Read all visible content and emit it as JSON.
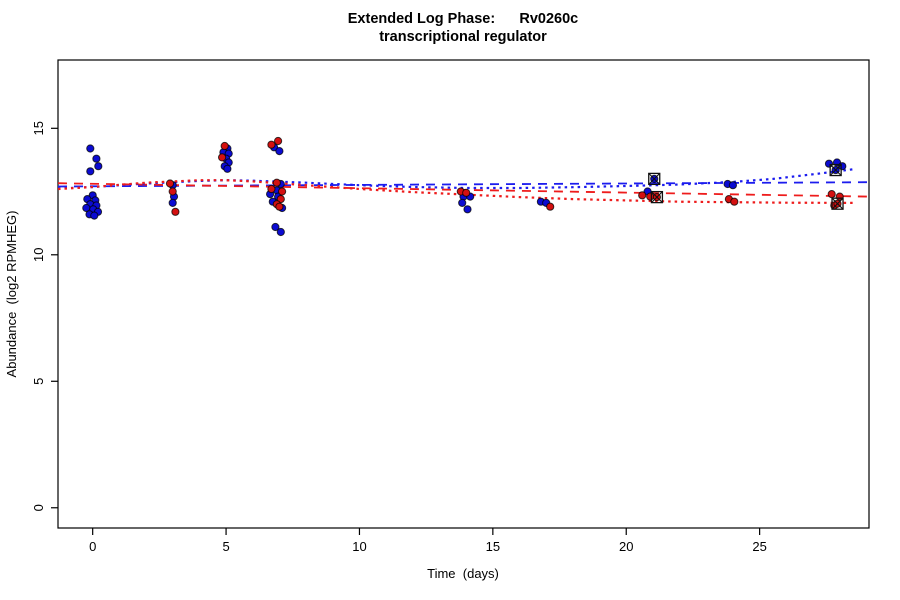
{
  "title": {
    "line1": "Extended Log Phase:      Rv0260c",
    "line2": "transcriptional regulator"
  },
  "colors": {
    "blue_point": "#0b0bd2",
    "red_point": "#d41010",
    "blue_line": "#1c1cee",
    "red_line": "#ee1c1c",
    "marker_outline": "#111111",
    "axis": "#000000",
    "background": "#ffffff"
  },
  "chart_data": {
    "type": "scatter",
    "title": "Extended Log Phase: Rv0260c transcriptional regulator",
    "xlabel": "Time  (days)",
    "ylabel": "Abundance  (log2 RPMHEG)",
    "xlim": [
      -1.3,
      29.1
    ],
    "ylim": [
      -0.8,
      17.7
    ],
    "xticks": [
      0,
      5,
      10,
      15,
      20,
      25
    ],
    "yticks": [
      0,
      5,
      10,
      15
    ],
    "grid": false,
    "legend": "none",
    "series": [
      {
        "name": "blue-samples",
        "type": "scatter",
        "color": "blue",
        "points": [
          [
            -0.09,
            14.2
          ],
          [
            0.14,
            13.8
          ],
          [
            0.21,
            13.5
          ],
          [
            -0.09,
            13.3
          ],
          [
            0.0,
            12.35
          ],
          [
            -0.2,
            12.2
          ],
          [
            0.1,
            12.15
          ],
          [
            -0.09,
            12.0
          ],
          [
            0.14,
            11.95
          ],
          [
            -0.24,
            11.85
          ],
          [
            0.02,
            11.8
          ],
          [
            0.2,
            11.7
          ],
          [
            -0.12,
            11.6
          ],
          [
            0.06,
            11.55
          ],
          [
            3.0,
            12.75
          ],
          [
            3.05,
            12.3
          ],
          [
            3.0,
            12.05
          ],
          [
            5.05,
            14.2
          ],
          [
            4.9,
            14.05
          ],
          [
            5.1,
            14.0
          ],
          [
            5.0,
            13.8
          ],
          [
            5.1,
            13.65
          ],
          [
            4.95,
            13.5
          ],
          [
            5.05,
            13.4
          ],
          [
            6.8,
            14.25
          ],
          [
            7.0,
            14.1
          ],
          [
            7.05,
            12.8
          ],
          [
            6.9,
            12.55
          ],
          [
            6.65,
            12.4
          ],
          [
            6.95,
            12.3
          ],
          [
            6.75,
            12.1
          ],
          [
            7.1,
            11.85
          ],
          [
            6.85,
            11.1
          ],
          [
            7.05,
            10.9
          ],
          [
            13.9,
            12.3
          ],
          [
            14.15,
            12.3
          ],
          [
            13.85,
            12.05
          ],
          [
            14.05,
            11.8
          ],
          [
            16.8,
            12.1
          ],
          [
            17.0,
            12.05
          ],
          [
            20.8,
            12.5
          ],
          [
            23.8,
            12.8
          ],
          [
            24.0,
            12.75
          ],
          [
            27.6,
            13.6
          ],
          [
            27.9,
            13.65
          ],
          [
            28.1,
            13.5
          ]
        ]
      },
      {
        "name": "red-samples",
        "type": "scatter",
        "color": "red",
        "points": [
          [
            2.9,
            12.82
          ],
          [
            3.0,
            12.5
          ],
          [
            3.1,
            11.7
          ],
          [
            4.95,
            14.3
          ],
          [
            4.85,
            13.85
          ],
          [
            6.95,
            14.5
          ],
          [
            6.7,
            14.35
          ],
          [
            6.9,
            12.85
          ],
          [
            6.7,
            12.6
          ],
          [
            7.1,
            12.5
          ],
          [
            7.05,
            12.2
          ],
          [
            6.9,
            12.0
          ],
          [
            7.0,
            11.9
          ],
          [
            13.8,
            12.5
          ],
          [
            14.0,
            12.45
          ],
          [
            17.15,
            11.9
          ],
          [
            20.6,
            12.35
          ],
          [
            20.9,
            12.3
          ],
          [
            23.85,
            12.2
          ],
          [
            24.05,
            12.1
          ],
          [
            27.7,
            12.4
          ],
          [
            28.0,
            12.3
          ],
          [
            27.8,
            11.95
          ]
        ]
      },
      {
        "name": "marked-outliers",
        "type": "scatter-marked",
        "color": "mixed",
        "points": [
          [
            21.05,
            13.0,
            "blue"
          ],
          [
            21.15,
            12.28,
            "red"
          ],
          [
            27.85,
            13.35,
            "blue"
          ],
          [
            27.92,
            12.02,
            "red"
          ]
        ]
      },
      {
        "name": "blue-linear-fit",
        "type": "line",
        "style": "dashed",
        "color": "blue",
        "points": [
          [
            -1.3,
            12.7
          ],
          [
            29.1,
            12.87
          ]
        ]
      },
      {
        "name": "red-linear-fit",
        "type": "line",
        "style": "dashed",
        "color": "red",
        "points": [
          [
            -1.3,
            12.83
          ],
          [
            29.1,
            12.3
          ]
        ]
      },
      {
        "name": "blue-loess-fit",
        "type": "line",
        "style": "dotted",
        "color": "blue",
        "points": [
          [
            -1.3,
            12.62
          ],
          [
            0,
            12.68
          ],
          [
            2,
            12.82
          ],
          [
            4,
            12.92
          ],
          [
            5,
            12.95
          ],
          [
            6,
            12.93
          ],
          [
            8,
            12.85
          ],
          [
            10,
            12.75
          ],
          [
            12,
            12.68
          ],
          [
            14,
            12.64
          ],
          [
            16,
            12.64
          ],
          [
            18,
            12.67
          ],
          [
            20,
            12.72
          ],
          [
            22,
            12.78
          ],
          [
            24,
            12.88
          ],
          [
            25.5,
            13.0
          ],
          [
            27,
            13.18
          ],
          [
            28.5,
            13.38
          ]
        ]
      },
      {
        "name": "red-loess-fit",
        "type": "line",
        "style": "dotted",
        "color": "red",
        "points": [
          [
            -1.3,
            12.6
          ],
          [
            0,
            12.68
          ],
          [
            2,
            12.85
          ],
          [
            4,
            12.95
          ],
          [
            5,
            12.95
          ],
          [
            6,
            12.9
          ],
          [
            8,
            12.75
          ],
          [
            10,
            12.6
          ],
          [
            12,
            12.48
          ],
          [
            14,
            12.38
          ],
          [
            16,
            12.28
          ],
          [
            18,
            12.2
          ],
          [
            20,
            12.15
          ],
          [
            22,
            12.1
          ],
          [
            24,
            12.08
          ],
          [
            26,
            12.06
          ],
          [
            28.5,
            12.05
          ]
        ]
      }
    ]
  }
}
